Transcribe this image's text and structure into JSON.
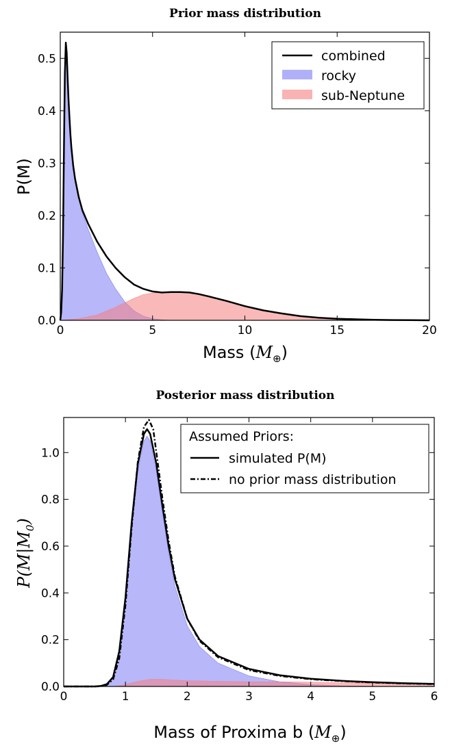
{
  "chart_data": [
    {
      "type": "area",
      "title": "Prior mass distribution",
      "xlabel_prefix": "Mass (",
      "xlabel_math": "M",
      "xlabel_sub": "⊕",
      "xlabel_suffix": ")",
      "ylabel": "P(M)",
      "xlim": [
        0,
        20
      ],
      "ylim": [
        0,
        0.55
      ],
      "xticks": [
        0,
        5,
        10,
        15,
        20
      ],
      "xtick_labels": [
        "0",
        "5",
        "10",
        "15",
        "20"
      ],
      "yticks": [
        0.0,
        0.1,
        0.2,
        0.3,
        0.4,
        0.5
      ],
      "ytick_labels": [
        "0.0",
        "0.1",
        "0.2",
        "0.3",
        "0.4",
        "0.5"
      ],
      "legend_position": "top-right",
      "series": [
        {
          "name": "combined",
          "kind": "line",
          "color": "#000000",
          "x": [
            0,
            0.05,
            0.1,
            0.15,
            0.2,
            0.25,
            0.3,
            0.35,
            0.4,
            0.45,
            0.5,
            0.55,
            0.6,
            0.7,
            0.8,
            1.0,
            1.2,
            1.5,
            2.0,
            2.5,
            3.0,
            3.5,
            4.0,
            4.5,
            5.0,
            5.5,
            6.0,
            6.5,
            7.0,
            7.5,
            8.0,
            9.0,
            10.0,
            11.0,
            12.0,
            13.0,
            14.0,
            15.0,
            16.0,
            17.0,
            18.0,
            19.0,
            20.0
          ],
          "y": [
            0.0,
            0.015,
            0.06,
            0.16,
            0.33,
            0.47,
            0.53,
            0.51,
            0.46,
            0.42,
            0.385,
            0.355,
            0.33,
            0.295,
            0.27,
            0.235,
            0.21,
            0.185,
            0.15,
            0.122,
            0.1,
            0.082,
            0.068,
            0.06,
            0.055,
            0.053,
            0.054,
            0.054,
            0.053,
            0.05,
            0.046,
            0.037,
            0.027,
            0.019,
            0.013,
            0.008,
            0.005,
            0.003,
            0.002,
            0.001,
            0.0005,
            0.0002,
            0.0
          ]
        },
        {
          "name": "rocky",
          "kind": "area",
          "color": "#7b7bf5",
          "x": [
            0,
            0.05,
            0.1,
            0.15,
            0.2,
            0.25,
            0.3,
            0.35,
            0.4,
            0.45,
            0.5,
            0.55,
            0.6,
            0.7,
            0.8,
            1.0,
            1.2,
            1.5,
            2.0,
            2.5,
            3.0,
            3.5,
            4.0,
            4.5,
            5.0,
            5.5,
            6.0
          ],
          "y": [
            0.0,
            0.015,
            0.06,
            0.16,
            0.33,
            0.47,
            0.53,
            0.51,
            0.46,
            0.42,
            0.385,
            0.355,
            0.33,
            0.295,
            0.27,
            0.233,
            0.205,
            0.175,
            0.13,
            0.09,
            0.06,
            0.035,
            0.018,
            0.008,
            0.003,
            0.001,
            0.0
          ]
        },
        {
          "name": "sub-Neptune",
          "kind": "area",
          "color": "#f58080",
          "x": [
            0,
            1.0,
            2.0,
            3.0,
            4.0,
            4.5,
            5.0,
            5.5,
            6.0,
            6.5,
            7.0,
            7.5,
            8.0,
            9.0,
            10.0,
            11.0,
            12.0,
            13.0,
            14.0,
            15.0,
            16.0,
            17.0,
            18.0,
            19.0,
            20.0
          ],
          "y": [
            0.0,
            0.003,
            0.01,
            0.025,
            0.042,
            0.049,
            0.052,
            0.053,
            0.054,
            0.054,
            0.053,
            0.05,
            0.046,
            0.037,
            0.027,
            0.019,
            0.013,
            0.008,
            0.005,
            0.003,
            0.002,
            0.001,
            0.0005,
            0.0002,
            0.0
          ]
        }
      ]
    },
    {
      "type": "area",
      "title": "Posterior mass distribution",
      "xlabel_prefix": "Mass of Proxima b (",
      "xlabel_math": "M",
      "xlabel_sub": "⊕",
      "xlabel_suffix": ")",
      "ylabel_math": "P(M|M",
      "ylabel_sub": "0",
      "ylabel_end": ")",
      "xlim": [
        0,
        6
      ],
      "ylim": [
        0,
        1.15
      ],
      "xticks": [
        0,
        1,
        2,
        3,
        4,
        5,
        6
      ],
      "xtick_labels": [
        "0",
        "1",
        "2",
        "3",
        "4",
        "5",
        "6"
      ],
      "yticks": [
        0.0,
        0.2,
        0.4,
        0.6,
        0.8,
        1.0
      ],
      "ytick_labels": [
        "0.0",
        "0.2",
        "0.4",
        "0.6",
        "0.8",
        "1.0"
      ],
      "legend_title": "Assumed Priors:",
      "legend_position": "top-right",
      "series": [
        {
          "name": "simulated P(M)",
          "kind": "line",
          "color": "#000000",
          "x": [
            0,
            0.5,
            0.6,
            0.7,
            0.8,
            0.9,
            1.0,
            1.1,
            1.2,
            1.3,
            1.35,
            1.4,
            1.5,
            1.6,
            1.7,
            1.8,
            2.0,
            2.2,
            2.5,
            3.0,
            3.5,
            4.0,
            4.5,
            5.0,
            5.5,
            6.0
          ],
          "y": [
            0.0,
            0.0,
            0.002,
            0.01,
            0.04,
            0.15,
            0.38,
            0.7,
            0.95,
            1.08,
            1.1,
            1.08,
            0.95,
            0.77,
            0.6,
            0.46,
            0.29,
            0.2,
            0.13,
            0.075,
            0.048,
            0.033,
            0.024,
            0.018,
            0.014,
            0.011
          ]
        },
        {
          "name": "no prior mass distribution",
          "kind": "dashdot",
          "color": "#000000",
          "x": [
            0,
            0.5,
            0.6,
            0.7,
            0.8,
            0.9,
            1.0,
            1.1,
            1.2,
            1.3,
            1.38,
            1.45,
            1.5,
            1.6,
            1.7,
            1.8,
            2.0,
            2.2,
            2.5,
            3.0,
            3.5,
            4.0,
            4.5,
            5.0,
            5.5,
            6.0
          ],
          "y": [
            0.0,
            0.0,
            0.001,
            0.007,
            0.03,
            0.12,
            0.35,
            0.68,
            0.96,
            1.11,
            1.14,
            1.1,
            1.0,
            0.8,
            0.62,
            0.47,
            0.29,
            0.195,
            0.125,
            0.07,
            0.045,
            0.031,
            0.023,
            0.017,
            0.013,
            0.01
          ]
        },
        {
          "name": "rocky",
          "kind": "area",
          "color": "#7b7bf5",
          "x": [
            0,
            0.5,
            0.6,
            0.7,
            0.8,
            0.9,
            1.0,
            1.1,
            1.2,
            1.3,
            1.35,
            1.4,
            1.5,
            1.6,
            1.7,
            1.8,
            2.0,
            2.2,
            2.5,
            3.0,
            3.5,
            4.0,
            4.5,
            5.0,
            5.5,
            6.0
          ],
          "y": [
            0.0,
            0.0,
            0.002,
            0.01,
            0.04,
            0.15,
            0.37,
            0.68,
            0.92,
            1.05,
            1.07,
            1.05,
            0.92,
            0.74,
            0.57,
            0.43,
            0.26,
            0.17,
            0.1,
            0.045,
            0.02,
            0.008,
            0.003,
            0.001,
            0.0,
            0.0
          ]
        },
        {
          "name": "sub-Neptune",
          "kind": "area",
          "color": "#f58080",
          "x": [
            0,
            0.8,
            1.0,
            1.2,
            1.4,
            1.6,
            1.8,
            2.0,
            2.5,
            3.0,
            3.5,
            4.0,
            4.5,
            5.0,
            5.5,
            6.0
          ],
          "y": [
            0.0,
            0.0,
            0.008,
            0.022,
            0.03,
            0.03,
            0.027,
            0.025,
            0.022,
            0.02,
            0.02,
            0.018,
            0.016,
            0.014,
            0.012,
            0.01
          ]
        }
      ]
    }
  ]
}
